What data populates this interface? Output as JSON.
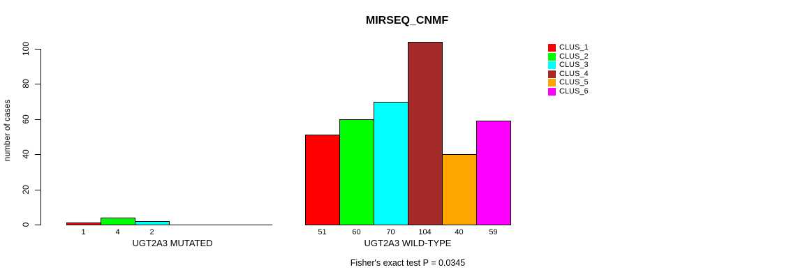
{
  "title": "MIRSEQ_CNMF",
  "ylabel": "number of cases",
  "footnote": "Fisher's exact test P = 0.0345",
  "chart_data": {
    "type": "bar",
    "title": "MIRSEQ_CNMF",
    "xlabel": "",
    "ylabel": "number of cases",
    "ylim": [
      0,
      100
    ],
    "yticks": [
      0,
      20,
      40,
      60,
      80,
      100
    ],
    "grid": false,
    "legend_position": "right",
    "categories": [
      "UGT2A3 MUTATED",
      "UGT2A3 WILD-TYPE"
    ],
    "series": [
      {
        "name": "CLUS_1",
        "color": "#FF0000",
        "values": [
          1,
          51
        ]
      },
      {
        "name": "CLUS_2",
        "color": "#00FF00",
        "values": [
          4,
          60
        ]
      },
      {
        "name": "CLUS_3",
        "color": "#00FFFF",
        "values": [
          2,
          70
        ]
      },
      {
        "name": "CLUS_4",
        "color": "#A52A2A",
        "values": [
          0,
          104
        ]
      },
      {
        "name": "CLUS_5",
        "color": "#FFA500",
        "values": [
          0,
          40
        ]
      },
      {
        "name": "CLUS_6",
        "color": "#FF00FF",
        "values": [
          0,
          59
        ]
      }
    ],
    "bar_value_labels": "shown beneath each nonzero bar",
    "annotation": "Fisher's exact test P = 0.0345"
  }
}
